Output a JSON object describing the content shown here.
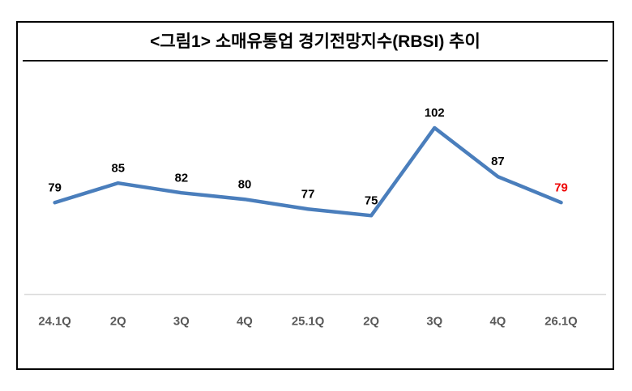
{
  "title": "<그림1> 소매유통업 경기전망지수(RBSI) 추이",
  "colors": {
    "line": "#4a7ebc",
    "data_label": "#000000",
    "last_data_label": "#ee0000",
    "axis_line": "#d9d9d9",
    "tick_label": "#595959",
    "border": "#000000"
  },
  "chart_data": {
    "type": "line",
    "title": "<그림1> 소매유통업 경기전망지수(RBSI) 추이",
    "categories": [
      "24.1Q",
      "2Q",
      "3Q",
      "4Q",
      "25.1Q",
      "2Q",
      "3Q",
      "4Q",
      "26.1Q"
    ],
    "values": [
      79,
      85,
      82,
      80,
      77,
      75,
      102,
      87,
      79
    ],
    "xlabel": "",
    "ylabel": "",
    "ylim": [
      50,
      115
    ],
    "grid": false,
    "legend": "none",
    "highlight_last_value": true,
    "data_labels_shown": true
  }
}
